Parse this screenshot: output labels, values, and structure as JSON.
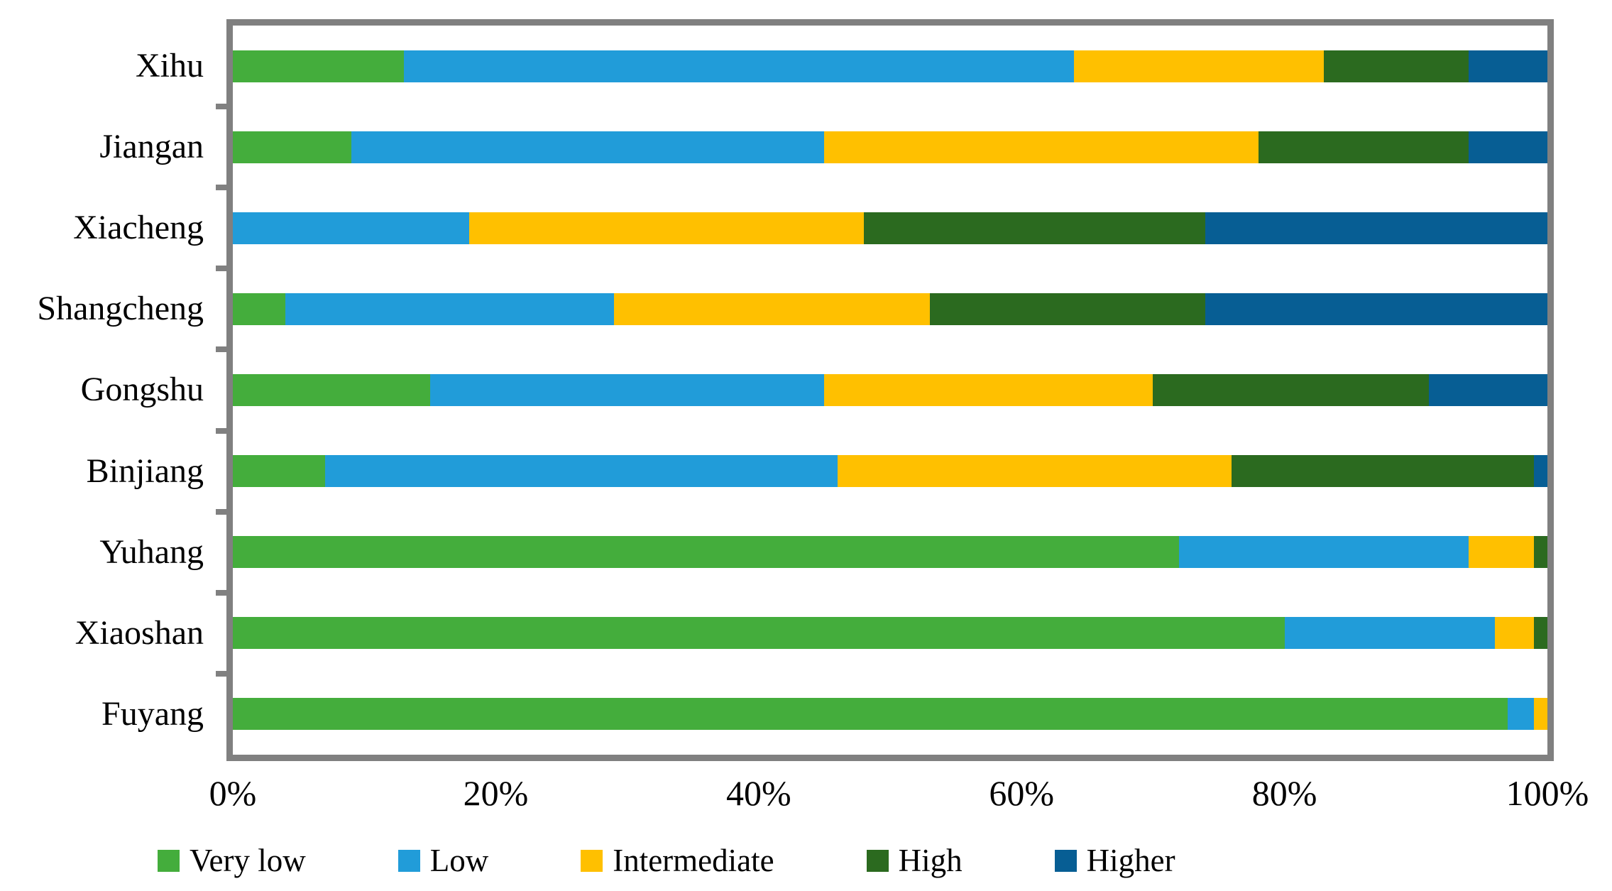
{
  "chart_data": {
    "type": "bar",
    "orientation": "horizontal",
    "stacked": true,
    "stack_unit": "percent",
    "title": "",
    "xlabel": "",
    "ylabel": "",
    "xlim": [
      0,
      100
    ],
    "x_tick_labels": [
      "0%",
      "20%",
      "40%",
      "60%",
      "80%",
      "100%"
    ],
    "grid": false,
    "legend_position": "bottom",
    "categories": [
      "Xihu",
      "Jiangan",
      "Xiacheng",
      "Shangcheng",
      "Gongshu",
      "Binjiang",
      "Yuhang",
      "Xiaoshan",
      "Fuyang"
    ],
    "series": [
      {
        "name": "Very low",
        "color": "#44AD3C",
        "values": [
          13,
          9,
          0,
          4,
          15,
          7,
          72,
          80,
          97
        ]
      },
      {
        "name": "Low",
        "color": "#219CD9",
        "values": [
          51,
          36,
          18,
          25,
          30,
          39,
          22,
          16,
          2
        ]
      },
      {
        "name": "Intermediate",
        "color": "#FFC000",
        "values": [
          19,
          33,
          30,
          24,
          25,
          30,
          5,
          3,
          1
        ]
      },
      {
        "name": "High",
        "color": "#2B6A1F",
        "values": [
          11,
          16,
          26,
          21,
          21,
          23,
          1,
          1,
          0
        ]
      },
      {
        "name": "Higher",
        "color": "#075E94",
        "values": [
          6,
          6,
          26,
          26,
          9,
          1,
          0,
          0,
          0
        ]
      }
    ]
  },
  "styles": {
    "plot_border_color": "#808080",
    "axis_tick_color": "#808080",
    "text_color": "#000000",
    "background_color": "#FFFFFF"
  }
}
